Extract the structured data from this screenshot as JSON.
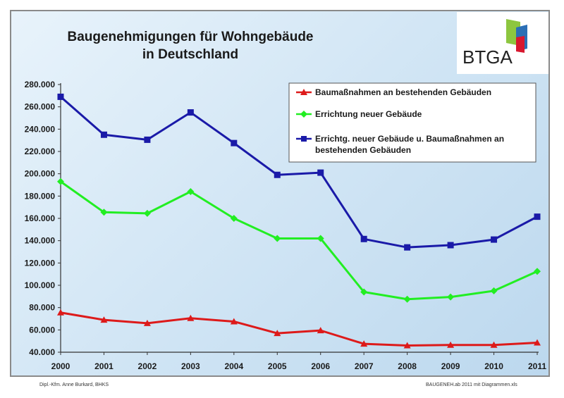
{
  "header": {
    "title_line1": "Baugenehmigungen für Wohngebäude",
    "title_line2": "in Deutschland",
    "logo_text": "BTGA"
  },
  "footer": {
    "left": "Dipl.-Kfm. Anne Burkard, BHKS",
    "right": "BAUGENEH.ab 2011 mit Diagrammen.xls"
  },
  "chart_data": {
    "type": "line",
    "x": [
      "2000",
      "2001",
      "2002",
      "2003",
      "2004",
      "2005",
      "2006",
      "2007",
      "2008",
      "2009",
      "2010",
      "2011"
    ],
    "ylim": [
      40000,
      280000
    ],
    "yticks": [
      "40.000",
      "60.000",
      "80.000",
      "100.000",
      "120.000",
      "140.000",
      "160.000",
      "180.000",
      "200.000",
      "220.000",
      "240.000",
      "260.000",
      "280.000"
    ],
    "grid": false,
    "legend_position": "top-right",
    "series": [
      {
        "name": "Baumaßnahmen an bestehenden Gebäuden",
        "color": "#dd1a1a",
        "marker": "triangle",
        "values": [
          75500,
          69000,
          66000,
          70500,
          67500,
          57000,
          59500,
          47500,
          46000,
          46500,
          46500,
          48500
        ]
      },
      {
        "name": "Errichtung neuer Gebäude",
        "color": "#22ee22",
        "marker": "diamond",
        "values": [
          193000,
          165500,
          164500,
          184000,
          160000,
          142000,
          142000,
          94000,
          87500,
          89500,
          95000,
          112500
        ]
      },
      {
        "name_line1": "Errichtg. neuer Gebäude u. Baumaßnahmen an",
        "name_line2": "bestehenden Gebäuden",
        "color": "#1a1aa8",
        "marker": "square",
        "values": [
          269000,
          235000,
          230500,
          255000,
          227500,
          199000,
          201000,
          141500,
          134000,
          136000,
          141000,
          161500
        ]
      }
    ]
  }
}
